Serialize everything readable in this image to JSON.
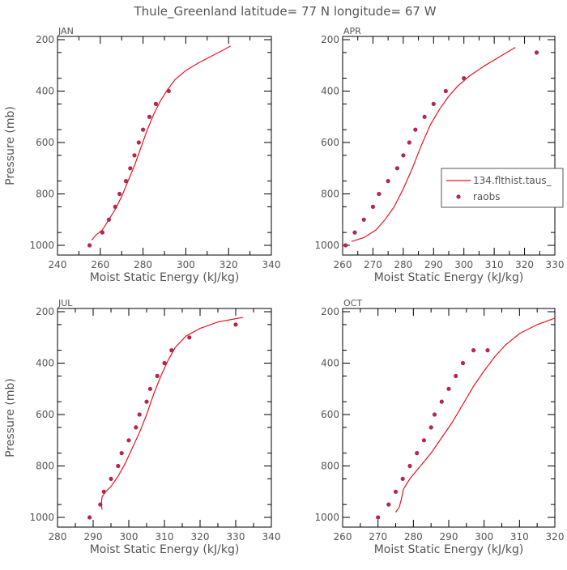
{
  "figure": {
    "title": "Thule_Greenland  latitude= 77 N longitude= 67 W"
  },
  "colors": {
    "model_line": "#e8141e",
    "raobs": "#b5254d",
    "axis": "#000000",
    "text": "#555555"
  },
  "legend": {
    "line_label": "134.flthist.taus_",
    "dot_label": "raobs"
  },
  "chart_data": [
    {
      "type": "line",
      "panel": "JAN",
      "title": "JAN",
      "xlabel": "Moist Static Energy (kJ/kg)",
      "ylabel": "Pressure (mb)",
      "xlim": [
        240,
        340
      ],
      "xticks": [
        240,
        260,
        280,
        300,
        320,
        340
      ],
      "xtick_labels": [
        "240",
        "260",
        "280",
        "300",
        "320",
        "340"
      ],
      "ylim": [
        1000,
        200
      ],
      "yticks": [
        200,
        400,
        600,
        800,
        1000
      ],
      "ytick_labels": [
        "200",
        "400",
        "600",
        "800",
        "1000"
      ],
      "series": [
        {
          "name": "134.flthist.taus_",
          "kind": "line",
          "points": [
            [
              256,
              980
            ],
            [
              258,
              960
            ],
            [
              261,
              940
            ],
            [
              264,
              900
            ],
            [
              267,
              860
            ],
            [
              270,
              810
            ],
            [
              273,
              750
            ],
            [
              276,
              690
            ],
            [
              279,
              620
            ],
            [
              282,
              550
            ],
            [
              285,
              490
            ],
            [
              288,
              440
            ],
            [
              291,
              400
            ],
            [
              295,
              355
            ],
            [
              300,
              320
            ],
            [
              306,
              290
            ],
            [
              313,
              260
            ],
            [
              321,
              225
            ]
          ]
        },
        {
          "name": "raobs",
          "kind": "scatter",
          "points": [
            [
              255,
              1000
            ],
            [
              261,
              950
            ],
            [
              264,
              900
            ],
            [
              267,
              850
            ],
            [
              269,
              800
            ],
            [
              272,
              750
            ],
            [
              274,
              700
            ],
            [
              276,
              650
            ],
            [
              278,
              600
            ],
            [
              280,
              550
            ],
            [
              283,
              500
            ],
            [
              286,
              450
            ],
            [
              292,
              400
            ]
          ]
        }
      ]
    },
    {
      "type": "line",
      "panel": "APR",
      "title": "APR",
      "xlabel": "Moist Static Energy (kJ/kg)",
      "ylabel": "",
      "xlim": [
        260,
        330
      ],
      "xticks": [
        260,
        270,
        280,
        290,
        300,
        310,
        320,
        330
      ],
      "xtick_labels": [
        "260",
        "270",
        "280",
        "290",
        "300",
        "310",
        "320",
        "330"
      ],
      "ylim": [
        1000,
        200
      ],
      "yticks": [
        200,
        400,
        600,
        800,
        1000
      ],
      "ytick_labels": [
        "200",
        "400",
        "600",
        "800",
        "1000"
      ],
      "legend": true,
      "series": [
        {
          "name": "134.flthist.taus_",
          "kind": "line",
          "points": [
            [
              263,
              985
            ],
            [
              267,
              970
            ],
            [
              271,
              940
            ],
            [
              274,
              900
            ],
            [
              277,
              850
            ],
            [
              280,
              780
            ],
            [
              283,
              700
            ],
            [
              286,
              610
            ],
            [
              289,
              530
            ],
            [
              292,
              470
            ],
            [
              295,
              420
            ],
            [
              298,
              380
            ],
            [
              302,
              340
            ],
            [
              307,
              300
            ],
            [
              312,
              265
            ],
            [
              317,
              230
            ]
          ]
        },
        {
          "name": "raobs",
          "kind": "scatter",
          "points": [
            [
              261,
              1000
            ],
            [
              264,
              950
            ],
            [
              267,
              900
            ],
            [
              270,
              850
            ],
            [
              272,
              800
            ],
            [
              275,
              750
            ],
            [
              278,
              700
            ],
            [
              280,
              650
            ],
            [
              282,
              600
            ],
            [
              284,
              550
            ],
            [
              287,
              500
            ],
            [
              290,
              450
            ],
            [
              294,
              400
            ],
            [
              300,
              350
            ],
            [
              324,
              250
            ]
          ]
        }
      ]
    },
    {
      "type": "line",
      "panel": "JUL",
      "title": "JUL",
      "xlabel": "Moist Static Energy (kJ/kg)",
      "ylabel": "Pressure (mb)",
      "xlim": [
        280,
        340
      ],
      "xticks": [
        280,
        290,
        300,
        310,
        320,
        330,
        340
      ],
      "xtick_labels": [
        "280",
        "290",
        "300",
        "310",
        "320",
        "330",
        "340"
      ],
      "ylim": [
        1000,
        200
      ],
      "yticks": [
        200,
        400,
        600,
        800,
        1000
      ],
      "ytick_labels": [
        "200",
        "400",
        "600",
        "800",
        "1000"
      ],
      "series": [
        {
          "name": "134.flthist.taus_",
          "kind": "line",
          "points": [
            [
              292.5,
              970
            ],
            [
              292.3,
              950
            ],
            [
              292.5,
              920
            ],
            [
              293.5,
              900
            ],
            [
              295,
              880
            ],
            [
              297,
              840
            ],
            [
              299,
              790
            ],
            [
              301,
              730
            ],
            [
              303,
              670
            ],
            [
              305,
              600
            ],
            [
              307,
              520
            ],
            [
              309,
              450
            ],
            [
              311,
              390
            ],
            [
              313,
              340
            ],
            [
              316,
              295
            ],
            [
              320,
              265
            ],
            [
              325,
              240
            ],
            [
              332,
              222
            ]
          ]
        },
        {
          "name": "raobs",
          "kind": "scatter",
          "points": [
            [
              289,
              1000
            ],
            [
              292,
              950
            ],
            [
              293,
              900
            ],
            [
              295,
              850
            ],
            [
              297,
              800
            ],
            [
              298,
              750
            ],
            [
              300,
              700
            ],
            [
              302,
              650
            ],
            [
              303,
              600
            ],
            [
              305,
              550
            ],
            [
              306,
              500
            ],
            [
              308,
              450
            ],
            [
              310,
              400
            ],
            [
              312,
              350
            ],
            [
              317,
              300
            ],
            [
              330,
              250
            ]
          ]
        }
      ]
    },
    {
      "type": "line",
      "panel": "OCT",
      "title": "OCT",
      "xlabel": "Moist Static Energy (kJ/kg)",
      "ylabel": "",
      "xlim": [
        260,
        320
      ],
      "xticks": [
        260,
        270,
        280,
        290,
        300,
        310,
        320
      ],
      "xtick_labels": [
        "260",
        "270",
        "280",
        "290",
        "300",
        "310",
        "320"
      ],
      "ylim": [
        1000,
        200
      ],
      "yticks": [
        200,
        400,
        600,
        800,
        1000
      ],
      "ytick_labels": [
        "200",
        "400",
        "600",
        "800",
        "1000"
      ],
      "series": [
        {
          "name": "134.flthist.taus_",
          "kind": "line",
          "points": [
            [
              275,
              980
            ],
            [
              276,
              960
            ],
            [
              276.6,
              930
            ],
            [
              277.2,
              890
            ],
            [
              279,
              850
            ],
            [
              282,
              800
            ],
            [
              285,
              750
            ],
            [
              288,
              690
            ],
            [
              291,
              630
            ],
            [
              294,
              560
            ],
            [
              297,
              490
            ],
            [
              300,
              430
            ],
            [
              303,
              375
            ],
            [
              306,
              330
            ],
            [
              310,
              285
            ],
            [
              315,
              250
            ],
            [
              320,
              225
            ]
          ]
        },
        {
          "name": "raobs",
          "kind": "scatter",
          "points": [
            [
              270,
              1000
            ],
            [
              273,
              950
            ],
            [
              275,
              900
            ],
            [
              277,
              850
            ],
            [
              279,
              800
            ],
            [
              281,
              750
            ],
            [
              283,
              700
            ],
            [
              285,
              650
            ],
            [
              286,
              600
            ],
            [
              288,
              550
            ],
            [
              290,
              500
            ],
            [
              292,
              450
            ],
            [
              294,
              400
            ],
            [
              297,
              350
            ],
            [
              301,
              350
            ]
          ]
        }
      ]
    }
  ]
}
